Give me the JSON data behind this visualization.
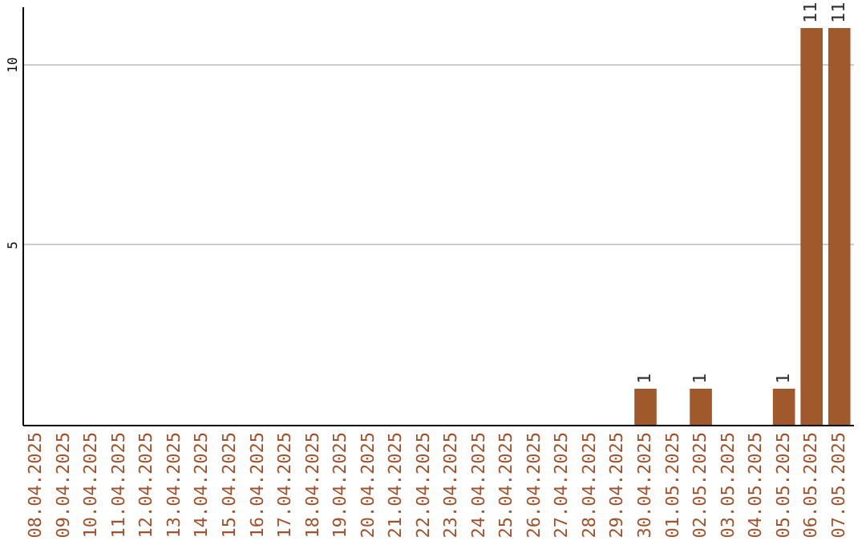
{
  "chart_data": {
    "type": "bar",
    "categories": [
      "08.04.2025",
      "09.04.2025",
      "10.04.2025",
      "11.04.2025",
      "12.04.2025",
      "13.04.2025",
      "14.04.2025",
      "15.04.2025",
      "16.04.2025",
      "17.04.2025",
      "18.04.2025",
      "19.04.2025",
      "20.04.2025",
      "21.04.2025",
      "22.04.2025",
      "23.04.2025",
      "24.04.2025",
      "25.04.2025",
      "26.04.2025",
      "27.04.2025",
      "28.04.2025",
      "29.04.2025",
      "30.04.2025",
      "01.05.2025",
      "02.05.2025",
      "03.05.2025",
      "04.05.2025",
      "05.05.2025",
      "06.05.2025",
      "07.05.2025"
    ],
    "values": [
      0,
      0,
      0,
      0,
      0,
      0,
      0,
      0,
      0,
      0,
      0,
      0,
      0,
      0,
      0,
      0,
      0,
      0,
      0,
      0,
      0,
      0,
      1,
      0,
      1,
      0,
      0,
      1,
      11,
      11
    ],
    "value_labels": [
      null,
      null,
      null,
      null,
      null,
      null,
      null,
      null,
      null,
      null,
      null,
      null,
      null,
      null,
      null,
      null,
      null,
      null,
      null,
      null,
      null,
      null,
      "1",
      null,
      "1",
      null,
      null,
      "1",
      "11",
      "11"
    ],
    "color": "#a0592a",
    "ylim": [
      0,
      11.6
    ],
    "yticks": [
      5,
      10
    ],
    "grid": "y"
  }
}
